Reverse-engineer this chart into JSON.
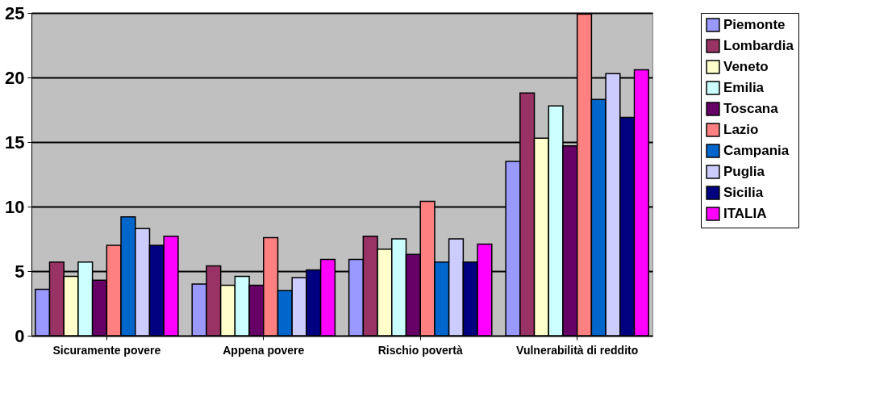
{
  "chart_data": {
    "type": "bar",
    "categories": [
      "Sicuramente povere",
      "Appena povere",
      "Rischio povertà",
      "Vulnerabilità di reddito"
    ],
    "series": [
      {
        "name": "Piemonte",
        "color": "#9999ff",
        "values": [
          3.6,
          4.0,
          5.9,
          13.5
        ]
      },
      {
        "name": "Lombardia",
        "color": "#993366",
        "values": [
          5.7,
          5.4,
          7.7,
          18.8
        ]
      },
      {
        "name": "Veneto",
        "color": "#ffffcc",
        "values": [
          4.6,
          3.9,
          6.7,
          15.3
        ]
      },
      {
        "name": "Emilia",
        "color": "#ccffff",
        "values": [
          5.7,
          4.6,
          7.5,
          17.8
        ]
      },
      {
        "name": "Toscana",
        "color": "#660066",
        "values": [
          4.3,
          3.9,
          6.3,
          14.7
        ]
      },
      {
        "name": "Lazio",
        "color": "#ff8080",
        "values": [
          7.0,
          7.6,
          10.4,
          24.9
        ]
      },
      {
        "name": "Campania",
        "color": "#0066cc",
        "values": [
          9.2,
          3.5,
          5.7,
          18.3
        ]
      },
      {
        "name": "Puglia",
        "color": "#ccccff",
        "values": [
          8.3,
          4.5,
          7.5,
          20.3
        ]
      },
      {
        "name": "Sicilia",
        "color": "#000080",
        "values": [
          7.0,
          5.1,
          5.7,
          16.9
        ]
      },
      {
        "name": "ITALIA",
        "color": "#ff00ff",
        "values": [
          7.7,
          5.9,
          7.1,
          20.6
        ]
      }
    ],
    "ylim": [
      0,
      25
    ],
    "yticks": [
      0,
      5,
      10,
      15,
      20,
      25
    ],
    "grid": "y",
    "legend": "right"
  }
}
